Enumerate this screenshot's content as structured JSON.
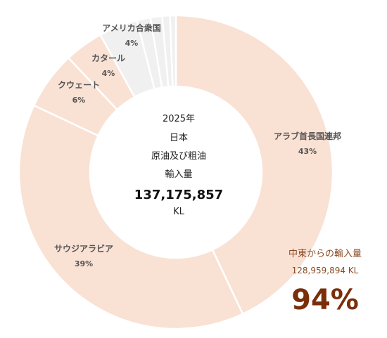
{
  "chart_data": {
    "type": "donut",
    "center": {
      "lines": [
        "2025年",
        "日本",
        "原油及び粗油",
        "輸入量"
      ],
      "total": "137,175,857",
      "unit": "KL"
    },
    "slices": [
      {
        "name": "アラブ首長国連邦",
        "value": 43,
        "label": "43%",
        "color": "#f9e1d4"
      },
      {
        "name": "サウジアラビア",
        "value": 39,
        "label": "39%",
        "color": "#f9e1d4"
      },
      {
        "name": "クウェート",
        "value": 6,
        "label": "6%",
        "color": "#f9e1d4"
      },
      {
        "name": "カタール",
        "value": 4,
        "label": "4%",
        "color": "#f9e1d4"
      },
      {
        "name": "アメリカ合衆国",
        "value": 4,
        "label": "4%",
        "color": "#f0f0f0"
      },
      {
        "name": "",
        "value": 1.4,
        "label": "",
        "color": "#f0f0f0"
      },
      {
        "name": "",
        "value": 1.2,
        "label": "",
        "color": "#f0f0f0"
      },
      {
        "name": "",
        "value": 0.8,
        "label": "",
        "color": "#f0f0f0"
      },
      {
        "name": "",
        "value": 0.6,
        "label": "",
        "color": "#f0f0f0"
      }
    ],
    "callout": {
      "label": "中東からの輸入量",
      "value": "128,959,894 KL",
      "percent": "94%"
    }
  }
}
